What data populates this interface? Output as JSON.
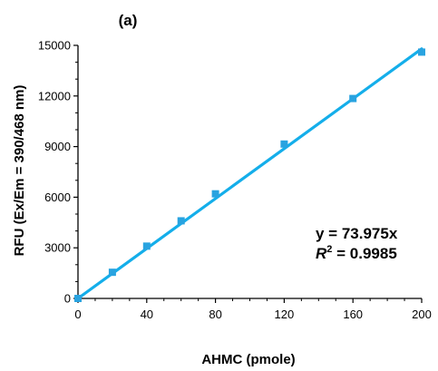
{
  "chart_data": {
    "type": "scatter",
    "title": "(a)",
    "xlabel": "AHMC (pmole)",
    "ylabel": "RFU (Ex/Em = 390/468 nm)",
    "xlim": [
      0,
      200
    ],
    "ylim": [
      0,
      15000
    ],
    "x_ticks": [
      0,
      40,
      80,
      120,
      160,
      200
    ],
    "x_tick_labels": [
      "0",
      "40",
      "80",
      "120",
      "160",
      "200"
    ],
    "y_ticks": [
      0,
      3000,
      6000,
      9000,
      12000,
      15000
    ],
    "y_tick_labels": [
      "0",
      "3000",
      "6000",
      "9000",
      "12000",
      "15000"
    ],
    "grid": false,
    "series": [
      {
        "marker": "square",
        "color": "#29a3e0",
        "x": [
          0,
          20,
          40,
          60,
          80,
          120,
          160,
          200
        ],
        "y": [
          0,
          1550,
          3100,
          4600,
          6200,
          9150,
          11850,
          14600
        ]
      }
    ],
    "trendline": {
      "slope": 73.975,
      "intercept": 0,
      "color": "#14aeea"
    },
    "equation_label": "y = 73.975x",
    "r2_label": {
      "prefix": "R",
      "superscript": "2",
      "suffix": " = 0.9985"
    }
  }
}
